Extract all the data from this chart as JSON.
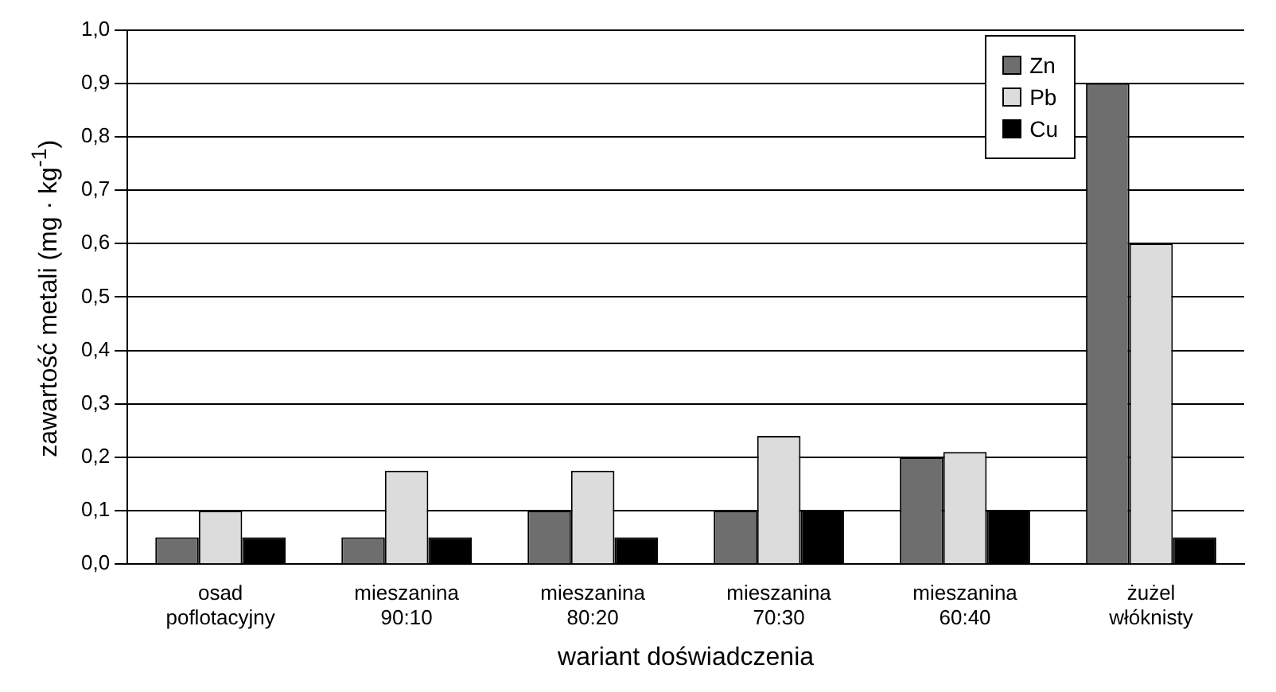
{
  "chart_data": {
    "type": "bar",
    "xlabel": "wariant doświadczenia",
    "ylabel": "zawartość metali  (mg · kg$^{-1}$)",
    "categories": [
      "osad poflotacyjny",
      "mieszanina 90:10",
      "mieszanina 80:20",
      "mieszanina 70:30",
      "mieszanina 60:40",
      "żużel włóknisty"
    ],
    "series": [
      {
        "name": "Zn",
        "color": "#6e6e6e",
        "values": [
          0.05,
          0.05,
          0.1,
          0.1,
          0.2,
          0.9
        ]
      },
      {
        "name": "Pb",
        "color": "#dcdcdc",
        "values": [
          0.1,
          0.175,
          0.175,
          0.24,
          0.21,
          0.6
        ]
      },
      {
        "name": "Cu",
        "color": "#000000",
        "values": [
          0.05,
          0.05,
          0.05,
          0.1,
          0.1,
          0.05
        ]
      }
    ],
    "ylim": [
      0,
      1
    ],
    "yticks": [
      {
        "value": 0,
        "label": "0,0"
      },
      {
        "value": 0.1,
        "label": "0,1"
      },
      {
        "value": 0.2,
        "label": "0,2"
      },
      {
        "value": 0.3,
        "label": "0,3"
      },
      {
        "value": 0.4,
        "label": "0,4"
      },
      {
        "value": 0.5,
        "label": "0,5"
      },
      {
        "value": 0.6,
        "label": "0,6"
      },
      {
        "value": 0.7,
        "label": "0,7"
      },
      {
        "value": 0.8,
        "label": "0,8"
      },
      {
        "value": 0.9,
        "label": "0,9"
      },
      {
        "value": 1,
        "label": "1,0"
      }
    ],
    "grid": "y",
    "legend": "top right"
  }
}
